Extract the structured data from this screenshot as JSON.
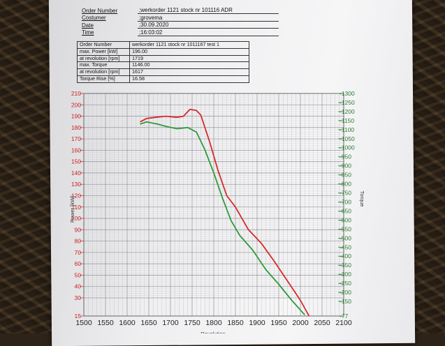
{
  "header": {
    "rows": [
      {
        "label": "Order Number",
        "value": ";werkorder 1121 stock nr 101116  ADR"
      },
      {
        "label": "Costumer",
        "value": ";grovema"
      },
      {
        "label": "Date",
        "value": ";30.09.2020"
      },
      {
        "label": "Time",
        "value": ";16:03:02"
      }
    ]
  },
  "params": {
    "rows": [
      {
        "label": "Order Number",
        "value": "werkorder 1121 stock nr 1011167  test 1"
      },
      {
        "label": "max. Power [kW]",
        "value": "196.00"
      },
      {
        "label": "at revolution [rpm]",
        "value": "1719"
      },
      {
        "label": "max. Torque",
        "value": "1146.00"
      },
      {
        "label": "at revolution [rpm]",
        "value": "1617"
      },
      {
        "label": "Torque Rise [%]",
        "value": "16.58"
      }
    ]
  },
  "chart_data": {
    "type": "line",
    "xlabel": "Revolution",
    "ylabel": "Power [kW]",
    "y2label": "Torque",
    "xlim": [
      1500,
      2100
    ],
    "ylim": [
      15,
      210
    ],
    "y2lim": [
      77,
      1300
    ],
    "grid": true,
    "colors": {
      "power": "#d42a2a",
      "torque": "#2f9a3a"
    },
    "x_ticks": [
      "1500",
      "1550",
      "1600",
      "1650",
      "1700",
      "1750",
      "1800",
      "1850",
      "1900",
      "1950",
      "2000",
      "2050",
      "2100"
    ],
    "y_ticks": [
      "210",
      "200",
      "190",
      "180",
      "170",
      "160",
      "150",
      "140",
      "130",
      "120",
      "110",
      "100",
      "90",
      "80",
      "70",
      "60",
      "50",
      "40",
      "30",
      "15"
    ],
    "y2_ticks": [
      "1300",
      "1250",
      "1200",
      "1150",
      "1100",
      "1050",
      "1000",
      "950",
      "900",
      "850",
      "800",
      "750",
      "700",
      "650",
      "600",
      "550",
      "500",
      "450",
      "400",
      "350",
      "300",
      "250",
      "200",
      "150",
      "77"
    ],
    "series": [
      {
        "axis": "left",
        "color": "#d42a2a",
        "points": [
          [
            1630,
            185
          ],
          [
            1645,
            188
          ],
          [
            1665,
            189
          ],
          [
            1690,
            190
          ],
          [
            1715,
            189
          ],
          [
            1730,
            190
          ],
          [
            1745,
            196
          ],
          [
            1760,
            195
          ],
          [
            1770,
            191
          ],
          [
            1790,
            168
          ],
          [
            1810,
            142
          ],
          [
            1830,
            120
          ],
          [
            1850,
            110
          ],
          [
            1880,
            90
          ],
          [
            1910,
            78
          ],
          [
            1940,
            62
          ],
          [
            1970,
            45
          ],
          [
            2000,
            28
          ],
          [
            2020,
            15
          ]
        ]
      },
      {
        "axis": "left",
        "color": "#2f9a3a",
        "points": [
          [
            1630,
            183
          ],
          [
            1645,
            185
          ],
          [
            1670,
            183
          ],
          [
            1690,
            181
          ],
          [
            1715,
            179
          ],
          [
            1740,
            180
          ],
          [
            1760,
            176
          ],
          [
            1780,
            160
          ],
          [
            1800,
            140
          ],
          [
            1820,
            118
          ],
          [
            1840,
            98
          ],
          [
            1860,
            85
          ],
          [
            1890,
            72
          ],
          [
            1920,
            55
          ],
          [
            1950,
            42
          ],
          [
            1980,
            28
          ],
          [
            2010,
            16
          ]
        ]
      }
    ]
  }
}
